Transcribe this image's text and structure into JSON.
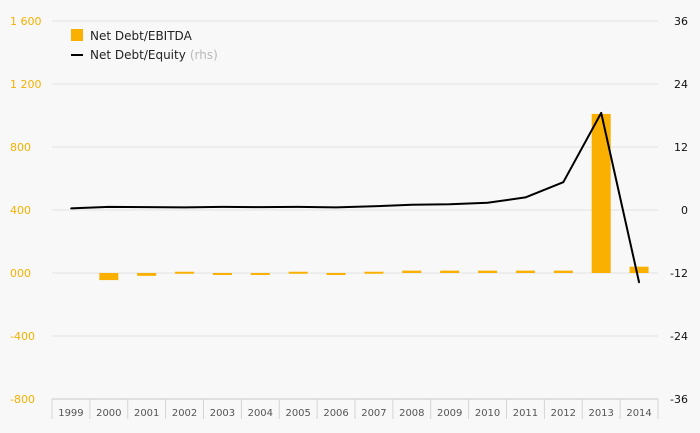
{
  "chart_data": {
    "type": "bar",
    "categories": [
      "1999",
      "2000",
      "2001",
      "2002",
      "2003",
      "2004",
      "2005",
      "2006",
      "2007",
      "2008",
      "2009",
      "2010",
      "2011",
      "2012",
      "2013",
      "2014"
    ],
    "series": [
      {
        "name": "Net Debt/EBITDA",
        "type": "bar",
        "axis": "left",
        "color": "#f9b000",
        "values": [
          0,
          -45,
          -18,
          8,
          -5,
          -5,
          8,
          -5,
          8,
          15,
          15,
          15,
          15,
          15,
          1010,
          40
        ]
      },
      {
        "name": "Net Debt/Equity",
        "name_suffix": "(rhs)",
        "type": "line",
        "axis": "right",
        "color": "#000000",
        "values": [
          0.3,
          0.6,
          0.55,
          0.5,
          0.6,
          0.55,
          0.6,
          0.5,
          0.7,
          1.0,
          1.1,
          1.4,
          2.4,
          5.3,
          18.5,
          -13.8
        ]
      }
    ],
    "y_left": {
      "ylim": [
        -800,
        1600
      ],
      "ticks": [
        "1 600",
        "1 200",
        "800",
        "400",
        "000",
        "-400",
        "-800"
      ],
      "tick_values": [
        1600,
        1200,
        800,
        400,
        0,
        -400,
        -800
      ]
    },
    "y_right": {
      "ylim": [
        -36,
        36
      ],
      "ticks": [
        "36",
        "24",
        "12",
        "0",
        "-12",
        "-24",
        "-36"
      ],
      "tick_values": [
        36,
        24,
        12,
        0,
        -12,
        -24,
        -36
      ]
    },
    "grid": true,
    "legend": "top-left",
    "colors": {
      "left_axis": "#f6b100",
      "grid": "#e2e2e2",
      "bar": "#f9b000",
      "line": "#000000"
    }
  }
}
